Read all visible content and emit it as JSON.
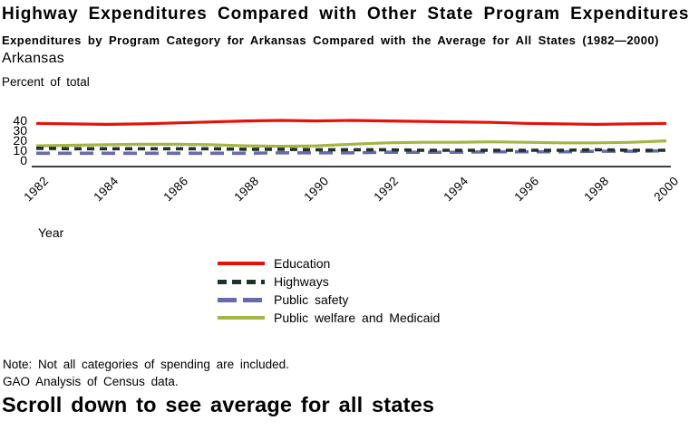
{
  "page": {
    "title": "Highway Expenditures Compared with Other State Program Expenditures",
    "subtitle": "Expenditures by Program Category for Arkansas Compared with the Average for All States (1982—2000)",
    "region_label": "Arkansas",
    "unit_label": "Percent of total",
    "x_axis_title": "Year",
    "note_line1": "Note: Not all categories of spending are included.",
    "note_line2": "GAO Analysis of Census data.",
    "footer_headline": "Scroll down to see average for all states"
  },
  "colors": {
    "education": "#e81109",
    "highways": "#1c3326",
    "public_safety": "#6969af",
    "public_welfare": "#a5b544",
    "axis": "#000000",
    "text": "#000000",
    "background": "#ffffff"
  },
  "chart_data": {
    "type": "line",
    "title": "Arkansas",
    "xlabel": "Year",
    "ylabel": "Percent of total",
    "x": [
      1982,
      1983,
      1984,
      1985,
      1986,
      1987,
      1988,
      1989,
      1990,
      1991,
      1992,
      1993,
      1994,
      1995,
      1996,
      1997,
      1998,
      1999,
      2000
    ],
    "x_tick_labels": [
      "1982",
      "1984",
      "1986",
      "1988",
      "1990",
      "1992",
      "1994",
      "1996",
      "1998",
      "2000"
    ],
    "y_ticks": [
      0,
      10,
      20,
      30,
      40
    ],
    "ylim": [
      0,
      44
    ],
    "grid": false,
    "legend_position": "bottom-center",
    "series": [
      {
        "name": "Education",
        "color_key": "education",
        "line_style": "solid",
        "values": [
          37,
          36.5,
          36,
          36.5,
          37.5,
          38.5,
          39.5,
          40,
          39.5,
          40,
          39.5,
          39,
          38.5,
          38,
          37,
          36.5,
          36,
          36.5,
          37
        ]
      },
      {
        "name": "Highways",
        "color_key": "highways",
        "line_style": "dash-short",
        "values": [
          12,
          11.5,
          11.5,
          11.5,
          11.5,
          11.5,
          11,
          11,
          10.5,
          10.5,
          10.5,
          10,
          10,
          10,
          10,
          10,
          10.5,
          10,
          10
        ]
      },
      {
        "name": "Public safety",
        "color_key": "public_safety",
        "line_style": "dash-long",
        "values": [
          7,
          7,
          7,
          7,
          7,
          7,
          7,
          7.5,
          7.5,
          7.5,
          8,
          8,
          8,
          8.5,
          8.5,
          8.5,
          9,
          9,
          9.5
        ]
      },
      {
        "name": "Public welfare and Medicaid",
        "color_key": "public_welfare",
        "line_style": "solid",
        "values": [
          14.5,
          15,
          15.5,
          16,
          16,
          15.5,
          14.5,
          14,
          14.5,
          16,
          17.5,
          18,
          18,
          18.5,
          18,
          17.5,
          17.5,
          18,
          19.5
        ]
      }
    ]
  }
}
